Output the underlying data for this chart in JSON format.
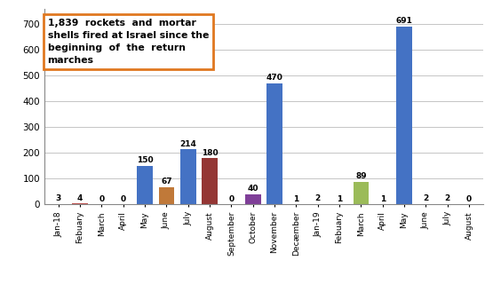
{
  "categories": [
    "Jan-18",
    "Febuary",
    "March",
    "April",
    "May",
    "June",
    "July",
    "August",
    "September",
    "October",
    "November",
    "Decæmber",
    "Jan-19",
    "Febuary",
    "March",
    "April",
    "May",
    "June",
    "July",
    "August"
  ],
  "values": [
    3,
    4,
    0,
    0,
    150,
    67,
    214,
    180,
    0,
    40,
    470,
    1,
    2,
    1,
    89,
    1,
    691,
    2,
    2,
    0
  ],
  "bar_colors": [
    "#4472C4",
    "#C0504D",
    "#9BBB59",
    "#8064A2",
    "#4472C4",
    "#C07939",
    "#4472C4",
    "#943634",
    "#9BBB59",
    "#7F3F98",
    "#4472C4",
    "#C07939",
    "#4472C4",
    "#4472C4",
    "#9BBB59",
    "#8064A2",
    "#4472C4",
    "#C07939",
    "#C07939",
    "#C0C0C0"
  ],
  "ylim": [
    0,
    760
  ],
  "yticks": [
    0,
    100,
    200,
    300,
    400,
    500,
    600,
    700
  ],
  "box_text": "1,839  rockets  and  mortar\nshells fired at Israel since the\nbeginning  of  the  return\nmarches",
  "box_facecolor": "#FFFFFF",
  "box_edgecolor": "#E07820",
  "background_color": "#FFFFFF",
  "grid_color": "#BBBBBB"
}
